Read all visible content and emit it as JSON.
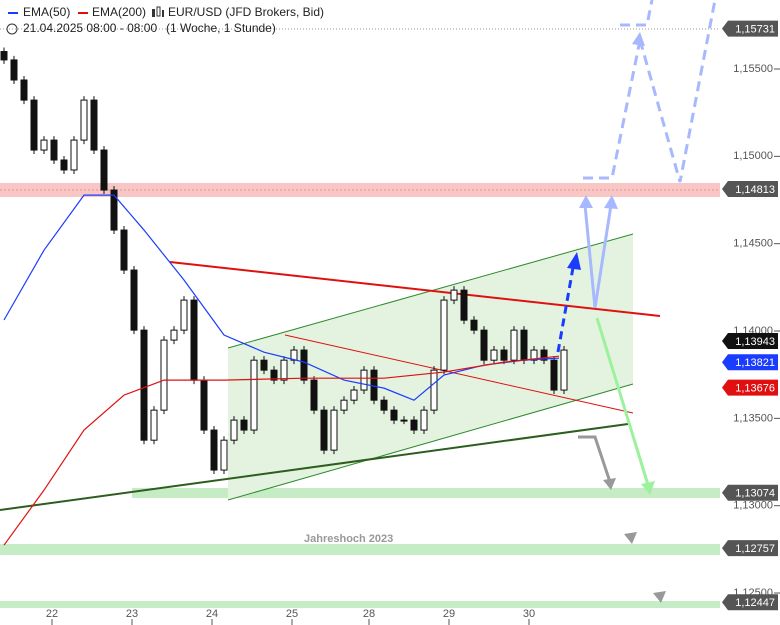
{
  "chart_data": {
    "type": "candlestick",
    "title": "EUR/USD (JFD Brokers, Bid)",
    "subtitle": "21.04.2025 08:00 - 08:00",
    "period": "(1 Woche, 1 Stunde)",
    "annotation": "Jahreshoch 2023",
    "open": [
      1.156,
      1.15552,
      1.15437,
      1.15322,
      1.15036,
      1.15093,
      1.14979,
      1.14922,
      1.15093,
      1.15322,
      1.15036,
      1.14807,
      1.14578,
      1.14349,
      1.14005,
      1.13375,
      1.13547,
      1.13948,
      1.14005,
      1.14177,
      1.13719,
      1.13433,
      1.13204,
      1.13375,
      1.1349,
      1.13433,
      1.13833,
      1.13776,
      1.13719,
      1.13833,
      1.13891,
      1.13719,
      1.13547,
      1.13318,
      1.13547,
      1.13604,
      1.13662,
      1.13776,
      1.13604,
      1.13547,
      1.1349,
      1.1349,
      1.13433,
      1.13547,
      1.13776,
      1.14177,
      1.14234,
      1.14062,
      1.14005,
      1.13833,
      1.13891,
      1.13833,
      1.14005,
      1.13833,
      1.13891,
      1.13833,
      1.13662
    ],
    "close": [
      1.15552,
      1.15437,
      1.15322,
      1.15036,
      1.15093,
      1.14979,
      1.14922,
      1.15093,
      1.15322,
      1.15036,
      1.14807,
      1.14578,
      1.14349,
      1.14005,
      1.13375,
      1.13547,
      1.13948,
      1.14005,
      1.14177,
      1.13719,
      1.13433,
      1.13204,
      1.13375,
      1.1349,
      1.13433,
      1.13833,
      1.13776,
      1.13719,
      1.13833,
      1.13891,
      1.13719,
      1.13547,
      1.13318,
      1.13547,
      1.13604,
      1.13662,
      1.13776,
      1.13604,
      1.13547,
      1.1349,
      1.1349,
      1.13433,
      1.13547,
      1.13776,
      1.14177,
      1.14234,
      1.14062,
      1.14005,
      1.13833,
      1.13891,
      1.13833,
      1.14005,
      1.13833,
      1.13891,
      1.13833,
      1.13662,
      1.13891
    ],
    "series": [
      {
        "name": "EMA(50)",
        "color": "#1a3cff",
        "x": [
          0,
          4,
          8,
          11,
          14,
          18,
          22,
          26,
          30,
          34,
          38,
          41,
          44,
          48,
          52,
          55.5
        ],
        "values": [
          1.14063,
          1.14463,
          1.14778,
          1.14778,
          1.14578,
          1.14292,
          1.13977,
          1.13879,
          1.13822,
          1.13719,
          1.13673,
          1.13604,
          1.13748,
          1.13805,
          1.13833,
          1.13845
        ]
      },
      {
        "name": "EMA(200)",
        "color": "#e01010",
        "x": [
          0,
          4,
          8,
          12,
          16,
          22,
          30,
          38,
          44,
          50,
          55.5
        ],
        "values": [
          1.12774,
          1.13089,
          1.13433,
          1.13633,
          1.13719,
          1.13719,
          1.1373,
          1.1373,
          1.13765,
          1.13822,
          1.13856
        ]
      }
    ],
    "xlim": [
      -0.4,
      71.6
    ],
    "ylim": [
      1.12317,
      1.15895
    ],
    "xticks": [
      {
        "value": 4.8,
        "label": "22"
      },
      {
        "value": 12.8,
        "label": "23"
      },
      {
        "value": 20.8,
        "label": "24"
      },
      {
        "value": 28.8,
        "label": "25"
      },
      {
        "value": 36.5,
        "label": "28"
      },
      {
        "value": 44.5,
        "label": "29"
      },
      {
        "value": 52.5,
        "label": "30"
      }
    ],
    "yticks": [
      {
        "value": 1.155,
        "label": "1,15500"
      },
      {
        "value": 1.15,
        "label": "1,15000"
      },
      {
        "value": 1.145,
        "label": "1,14500"
      },
      {
        "value": 1.14,
        "label": "1,14000"
      },
      {
        "value": 1.135,
        "label": "1,13500"
      },
      {
        "value": 1.13,
        "label": "1,13000"
      },
      {
        "value": 1.125,
        "label": "1,12500"
      }
    ],
    "levels": [
      {
        "value": 1.15731,
        "label": "1,15731",
        "color": "#555555"
      },
      {
        "value": 1.14813,
        "label": "1,14813",
        "color": "#555555"
      },
      {
        "value": 1.13943,
        "label": "1,13943",
        "color": "#111111"
      },
      {
        "value": 1.13821,
        "label": "1,13821",
        "color": "#1a3cff"
      },
      {
        "value": 1.13676,
        "label": "1,13676",
        "color": "#e01010"
      },
      {
        "value": 1.13074,
        "label": "1,13074",
        "color": "#555555"
      },
      {
        "value": 1.12757,
        "label": "1,12757",
        "color": "#555555"
      },
      {
        "value": 1.12447,
        "label": "1,12447",
        "color": "#555555"
      }
    ]
  }
}
